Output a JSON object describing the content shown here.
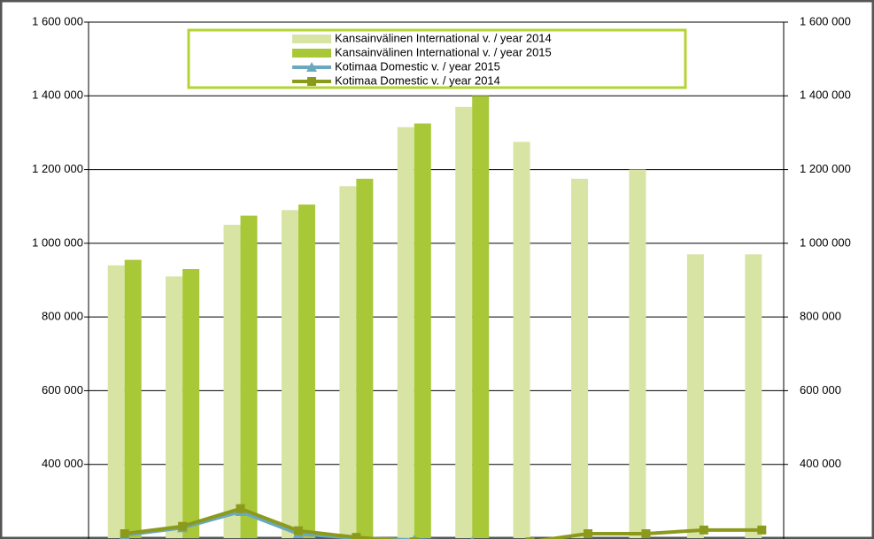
{
  "chart_data": {
    "type": "bar",
    "categories": [
      null,
      null,
      null,
      null,
      null,
      null,
      null,
      null,
      null,
      null,
      null,
      null
    ],
    "series": [
      {
        "name": "Kansainvälinen International v. / year 2014",
        "type": "bar",
        "color": "#d7e4a3",
        "values": [
          940000,
          910000,
          1050000,
          1090000,
          1155000,
          1315000,
          1370000,
          1275000,
          1175000,
          1200000,
          970000,
          970000
        ]
      },
      {
        "name": "Kansainvälinen International v. / year 2015",
        "type": "bar",
        "color": "#a8c838",
        "values": [
          955000,
          930000,
          1075000,
          1105000,
          1175000,
          1325000,
          1400000,
          null,
          null,
          null,
          null,
          null
        ]
      },
      {
        "name": "Kotimaa Domestic v. / year 2015",
        "type": "line",
        "color": "#6aa8c0",
        "marker": "triangle",
        "values": [
          208000,
          228000,
          272000,
          212000,
          200000,
          195000,
          190000,
          null,
          null,
          null,
          null,
          null
        ]
      },
      {
        "name": "Kotimaa Domestic v. / year 2014",
        "type": "line",
        "color": "#8c9a1c",
        "marker": "square",
        "values": [
          212000,
          232000,
          280000,
          220000,
          202000,
          190000,
          185000,
          190000,
          212000,
          212000,
          222000,
          222000
        ]
      }
    ],
    "ylim": [
      200000,
      1600000
    ],
    "yticks": [
      {
        "value": 400000,
        "label": "400 000"
      },
      {
        "value": 600000,
        "label": "600 000"
      },
      {
        "value": 800000,
        "label": "800 000"
      },
      {
        "value": 1000000,
        "label": "1 000 000"
      },
      {
        "value": 1200000,
        "label": "1 200 000"
      },
      {
        "value": 1400000,
        "label": "1 400 000"
      },
      {
        "value": 1600000,
        "label": "1 600 000"
      }
    ],
    "y2lim": [
      200000,
      1600000
    ],
    "y2ticks": [
      {
        "value": 400000,
        "label": "400 000"
      },
      {
        "value": 600000,
        "label": "600 000"
      },
      {
        "value": 800000,
        "label": "800 000"
      },
      {
        "value": 1000000,
        "label": "1 000 000"
      },
      {
        "value": 1200000,
        "label": "1 200 000"
      },
      {
        "value": 1400000,
        "label": "1 400 000"
      },
      {
        "value": 1600000,
        "label": "1 600 000"
      }
    ],
    "grid": true
  }
}
